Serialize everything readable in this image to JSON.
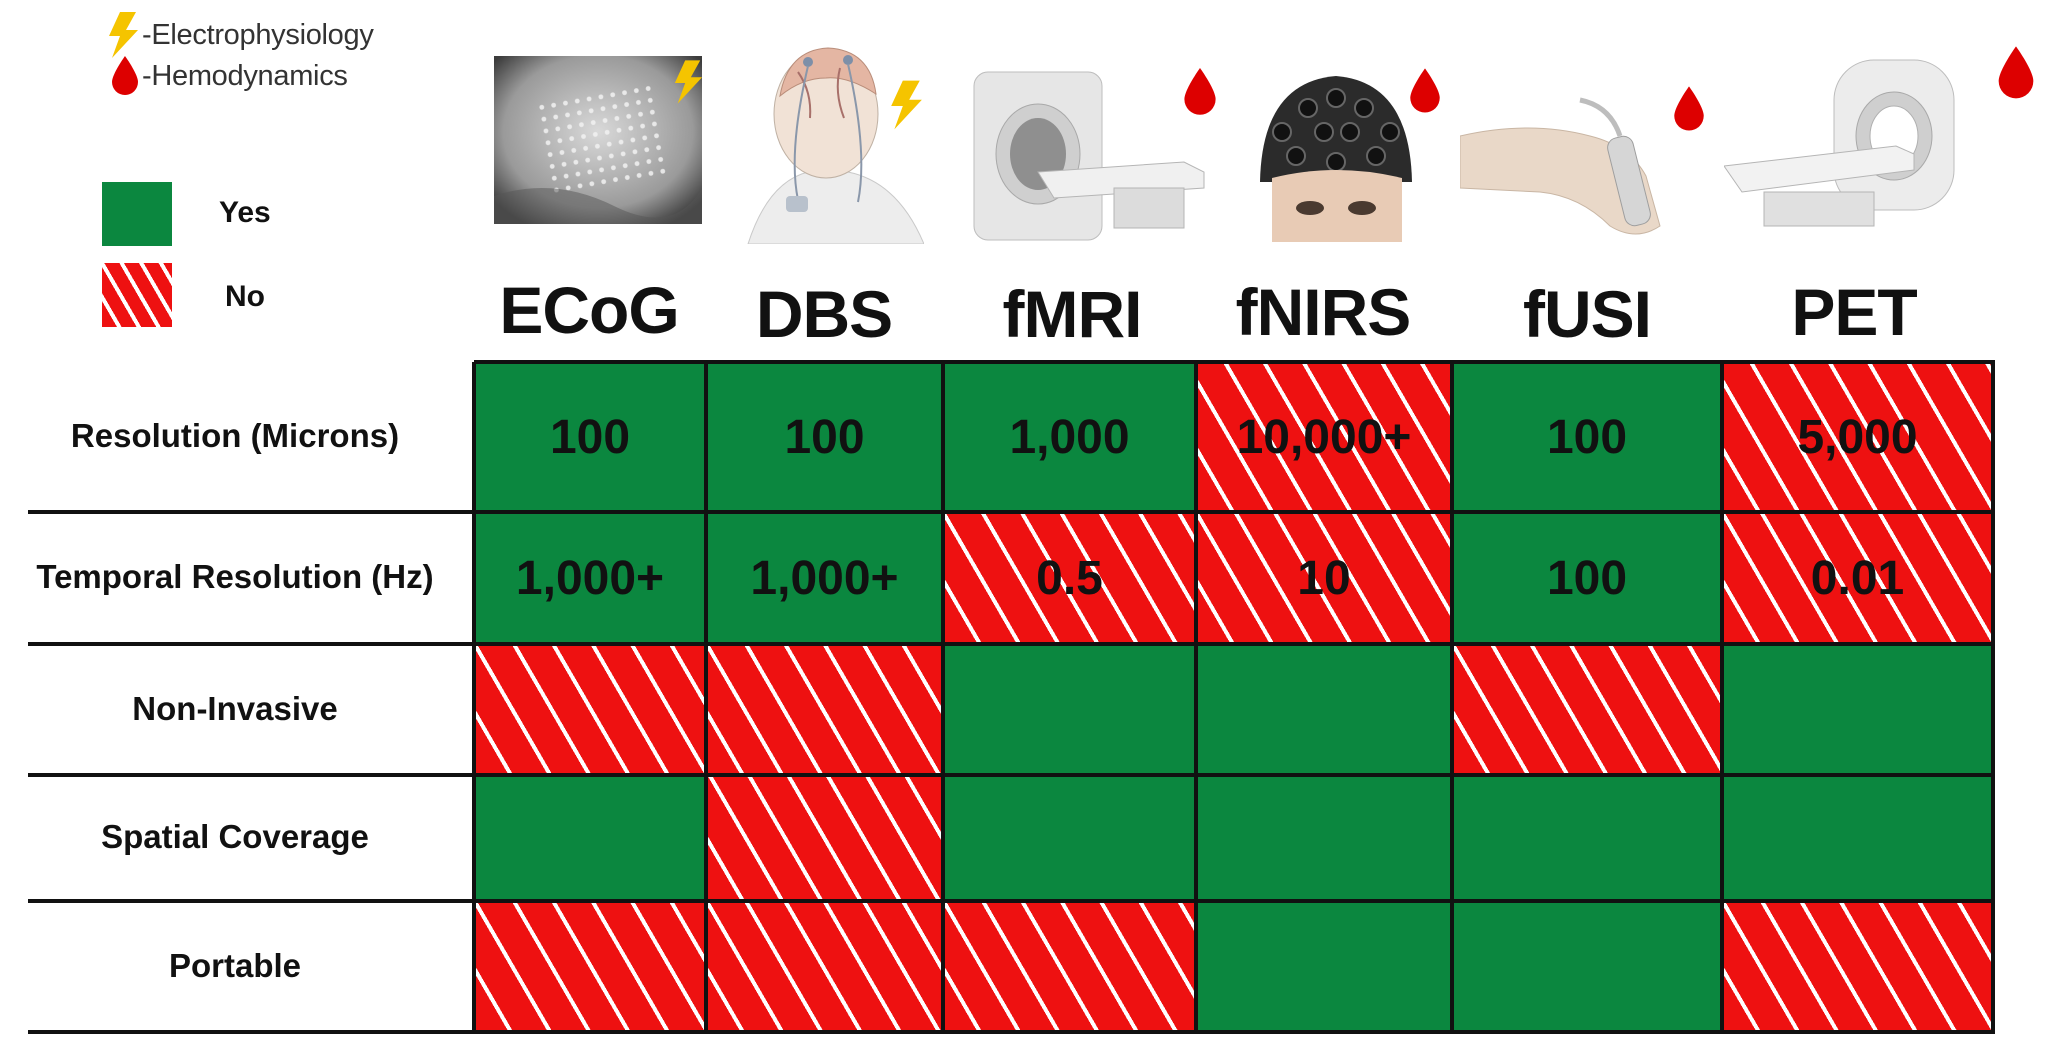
{
  "legend": {
    "signal_types": [
      {
        "label": "-Electrophysiology",
        "icon": "lightning-bolt-icon",
        "color": "#f5c400"
      },
      {
        "label": "-Hemodynamics",
        "icon": "blood-drop-icon",
        "color": "#dd0000"
      }
    ],
    "cell_key": [
      {
        "label": "Yes",
        "pattern": "solid-green",
        "color": "#0b873f"
      },
      {
        "label": "No",
        "pattern": "red-white-diagonal-hatch",
        "color": "#ee1111"
      }
    ]
  },
  "modalities": [
    {
      "name": "ECoG",
      "signal": "electrophysiology",
      "image": "electrode-grid-on-brain-photo"
    },
    {
      "name": "DBS",
      "signal": "electrophysiology",
      "image": "implanted-brain-stimulator-illustration"
    },
    {
      "name": "fMRI",
      "signal": "hemodynamics",
      "image": "mri-scanner-photo"
    },
    {
      "name": "fNIRS",
      "signal": "hemodynamics",
      "image": "optode-cap-on-head-photo"
    },
    {
      "name": "fUSI",
      "signal": "hemodynamics",
      "image": "handheld-ultrasound-probe-photo"
    },
    {
      "name": "PET",
      "signal": "hemodynamics",
      "image": "pet-scanner-photo"
    }
  ],
  "table": {
    "rows": [
      {
        "label": "Resolution (Microns)",
        "cells": [
          {
            "value": "100",
            "status": "yes"
          },
          {
            "value": "100",
            "status": "yes"
          },
          {
            "value": "1,000",
            "status": "yes"
          },
          {
            "value": "10,000+",
            "status": "no"
          },
          {
            "value": "100",
            "status": "yes"
          },
          {
            "value": "5,000",
            "status": "no"
          }
        ]
      },
      {
        "label": "Temporal Resolution (Hz)",
        "cells": [
          {
            "value": "1,000+",
            "status": "yes"
          },
          {
            "value": "1,000+",
            "status": "yes"
          },
          {
            "value": "0.5",
            "status": "no"
          },
          {
            "value": "10",
            "status": "no"
          },
          {
            "value": "100",
            "status": "yes"
          },
          {
            "value": "0.01",
            "status": "no"
          }
        ]
      },
      {
        "label": "Non-Invasive",
        "cells": [
          {
            "value": "",
            "status": "no"
          },
          {
            "value": "",
            "status": "no"
          },
          {
            "value": "",
            "status": "yes"
          },
          {
            "value": "",
            "status": "yes"
          },
          {
            "value": "",
            "status": "no"
          },
          {
            "value": "",
            "status": "yes"
          }
        ]
      },
      {
        "label": "Spatial Coverage",
        "cells": [
          {
            "value": "",
            "status": "yes"
          },
          {
            "value": "",
            "status": "no"
          },
          {
            "value": "",
            "status": "yes"
          },
          {
            "value": "",
            "status": "yes"
          },
          {
            "value": "",
            "status": "yes"
          },
          {
            "value": "",
            "status": "yes"
          }
        ]
      },
      {
        "label": "Portable",
        "cells": [
          {
            "value": "",
            "status": "no"
          },
          {
            "value": "",
            "status": "no"
          },
          {
            "value": "",
            "status": "no"
          },
          {
            "value": "",
            "status": "yes"
          },
          {
            "value": "",
            "status": "yes"
          },
          {
            "value": "",
            "status": "no"
          }
        ]
      }
    ]
  }
}
